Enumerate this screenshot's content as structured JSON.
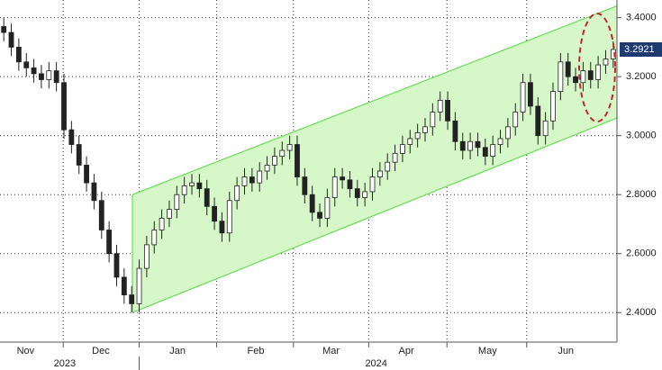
{
  "chart_data": {
    "type": "candlestick",
    "open": [
      3.37,
      3.35,
      3.3,
      3.25,
      3.23,
      3.21,
      3.19,
      3.22,
      3.18,
      3.02,
      2.97,
      2.9,
      2.84,
      2.78,
      2.68,
      2.6,
      2.52,
      2.46,
      2.43,
      2.55,
      2.63,
      2.68,
      2.72,
      2.75,
      2.8,
      2.83,
      2.84,
      2.82,
      2.76,
      2.71,
      2.67,
      2.78,
      2.83,
      2.86,
      2.84,
      2.88,
      2.9,
      2.93,
      2.95,
      2.97,
      2.86,
      2.8,
      2.74,
      2.72,
      2.79,
      2.86,
      2.85,
      2.82,
      2.79,
      2.81,
      2.86,
      2.88,
      2.91,
      2.94,
      2.97,
      2.99,
      3.01,
      3.03,
      3.08,
      3.12,
      3.05,
      2.98,
      2.95,
      2.98,
      2.96,
      2.93,
      2.97,
      2.99,
      3.03,
      3.08,
      3.18,
      3.1,
      3.0,
      3.05,
      3.15,
      3.25,
      3.2,
      3.18,
      3.22,
      3.19,
      3.24,
      3.26
    ],
    "high": [
      3.4,
      3.38,
      3.33,
      3.28,
      3.26,
      3.24,
      3.25,
      3.25,
      3.21,
      3.05,
      3.0,
      2.93,
      2.87,
      2.81,
      2.71,
      2.63,
      2.55,
      2.49,
      2.58,
      2.66,
      2.71,
      2.75,
      2.78,
      2.83,
      2.86,
      2.87,
      2.87,
      2.85,
      2.79,
      2.74,
      2.81,
      2.86,
      2.89,
      2.89,
      2.91,
      2.93,
      2.96,
      2.98,
      3.0,
      3.0,
      2.89,
      2.83,
      2.77,
      2.82,
      2.89,
      2.89,
      2.88,
      2.85,
      2.84,
      2.89,
      2.91,
      2.94,
      2.97,
      3.0,
      3.02,
      3.04,
      3.06,
      3.11,
      3.15,
      3.15,
      3.08,
      3.01,
      3.01,
      3.01,
      2.99,
      3.0,
      3.02,
      3.06,
      3.11,
      3.21,
      3.21,
      3.13,
      3.08,
      3.18,
      3.28,
      3.28,
      3.23,
      3.25,
      3.25,
      3.27,
      3.29,
      3.32
    ],
    "low": [
      3.32,
      3.27,
      3.22,
      3.2,
      3.18,
      3.16,
      3.16,
      3.15,
      2.99,
      2.94,
      2.87,
      2.81,
      2.75,
      2.65,
      2.57,
      2.49,
      2.43,
      2.4,
      2.4,
      2.52,
      2.6,
      2.65,
      2.69,
      2.72,
      2.77,
      2.8,
      2.79,
      2.73,
      2.68,
      2.64,
      2.64,
      2.75,
      2.8,
      2.81,
      2.81,
      2.85,
      2.87,
      2.9,
      2.92,
      2.83,
      2.77,
      2.71,
      2.69,
      2.69,
      2.76,
      2.82,
      2.79,
      2.76,
      2.76,
      2.78,
      2.83,
      2.85,
      2.88,
      2.91,
      2.94,
      2.96,
      2.98,
      3.0,
      3.05,
      3.02,
      2.95,
      2.92,
      2.92,
      2.93,
      2.9,
      2.9,
      2.94,
      2.96,
      3.0,
      3.05,
      3.07,
      2.97,
      2.97,
      3.02,
      3.12,
      3.17,
      3.15,
      3.15,
      3.16,
      3.16,
      3.21,
      3.23
    ],
    "close": [
      3.35,
      3.3,
      3.25,
      3.23,
      3.21,
      3.19,
      3.22,
      3.18,
      3.02,
      2.97,
      2.9,
      2.84,
      2.78,
      2.68,
      2.6,
      2.52,
      2.46,
      2.43,
      2.55,
      2.63,
      2.68,
      2.72,
      2.75,
      2.8,
      2.83,
      2.84,
      2.82,
      2.76,
      2.71,
      2.67,
      2.78,
      2.83,
      2.86,
      2.84,
      2.88,
      2.9,
      2.93,
      2.95,
      2.97,
      2.86,
      2.8,
      2.74,
      2.72,
      2.79,
      2.86,
      2.85,
      2.82,
      2.79,
      2.81,
      2.86,
      2.88,
      2.91,
      2.94,
      2.97,
      2.99,
      3.01,
      3.03,
      3.08,
      3.12,
      3.05,
      2.98,
      2.95,
      2.98,
      2.96,
      2.93,
      2.97,
      2.99,
      3.03,
      3.08,
      3.18,
      3.1,
      3.0,
      3.05,
      3.15,
      3.25,
      3.2,
      3.18,
      3.22,
      3.19,
      3.24,
      3.26,
      3.2921
    ],
    "last_price": 3.2921,
    "channel": {
      "lower": [
        2.4,
        3.06
      ],
      "upper": [
        2.8,
        3.44
      ],
      "color": "#66dd55",
      "fill": "#d6f7c8"
    },
    "ylim": [
      2.3,
      3.46
    ],
    "yticks": [
      {
        "value": 2.4,
        "label": "2.4000"
      },
      {
        "value": 2.6,
        "label": "2.6000"
      },
      {
        "value": 2.8,
        "label": "2.8000"
      },
      {
        "value": 3.0,
        "label": "3.0000"
      },
      {
        "value": 3.2,
        "label": "3.2000"
      },
      {
        "value": 3.4,
        "label": "3.4000"
      }
    ],
    "xlim": [
      0,
      82
    ],
    "xticks": [
      {
        "value": 3.4,
        "label": "Nov"
      },
      {
        "value": 13.4,
        "label": "Dec"
      },
      {
        "value": 23.6,
        "label": "Jan"
      },
      {
        "value": 34,
        "label": "Feb"
      },
      {
        "value": 44,
        "label": "Mar"
      },
      {
        "value": 54,
        "label": "Apr"
      },
      {
        "value": 64.8,
        "label": "May"
      },
      {
        "value": 75.2,
        "label": "Jun"
      }
    ],
    "years": [
      {
        "value": 8.6,
        "label": "2023"
      },
      {
        "value": 50,
        "label": "2024"
      }
    ],
    "grid": true
  }
}
